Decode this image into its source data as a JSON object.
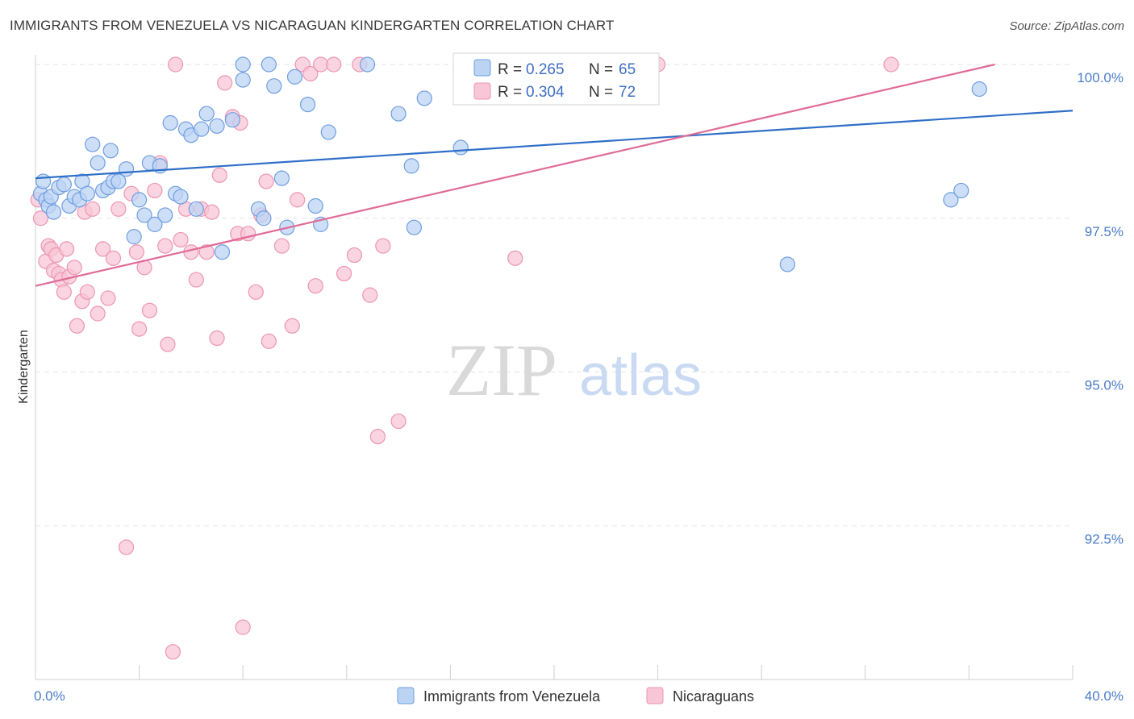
{
  "title": "IMMIGRANTS FROM VENEZUELA VS NICARAGUAN KINDERGARTEN CORRELATION CHART",
  "source": "Source: ZipAtlas.com",
  "watermark": {
    "zip": "ZIP",
    "atlas": "atlas"
  },
  "colors": {
    "blue_fill": "#bcd4f4",
    "blue_stroke": "#6f9ee0",
    "blue_line": "#2f6fc8",
    "pink_fill": "#f8c6d6",
    "pink_stroke": "#ec96b2",
    "pink_line": "#e06b98",
    "grid": "#e3e3e3",
    "tick_text": "#4a7cc9"
  },
  "legend": {
    "rows": [
      {
        "r_label": "R = ",
        "r_value": "0.265",
        "n_label": "N = ",
        "n_value": "65"
      },
      {
        "r_label": "R = ",
        "r_value": "0.304",
        "n_label": "N = ",
        "n_value": "72"
      }
    ]
  },
  "bottom_legend": [
    "Immigrants from Venezuela",
    "Nicaraguans"
  ],
  "chart_data": {
    "type": "scatter",
    "title": "IMMIGRANTS FROM VENEZUELA VS NICARAGUAN KINDERGARTEN CORRELATION CHART",
    "xlabel": "",
    "ylabel": "Kindergarten",
    "xlim": [
      0,
      40
    ],
    "ylim": [
      90.0,
      100.3
    ],
    "x_tick_labels": [
      "0.0%",
      "40.0%"
    ],
    "y_ticks": [
      92.5,
      95.0,
      97.5,
      100.0
    ],
    "y_tick_labels": [
      "92.5%",
      "95.0%",
      "97.5%",
      "100.0%"
    ],
    "grid": true,
    "legend_position": "top-center",
    "series": [
      {
        "name": "Immigrants from Venezuela",
        "color": "#6f9ee0",
        "trend": {
          "x": [
            0,
            40
          ],
          "y": [
            98.15,
            99.25
          ]
        },
        "points": [
          [
            0.2,
            97.9
          ],
          [
            0.3,
            98.1
          ],
          [
            0.4,
            97.8
          ],
          [
            0.5,
            97.7
          ],
          [
            0.6,
            97.85
          ],
          [
            0.7,
            97.6
          ],
          [
            0.9,
            98.0
          ],
          [
            1.1,
            98.05
          ],
          [
            1.3,
            97.7
          ],
          [
            1.5,
            97.85
          ],
          [
            1.7,
            97.8
          ],
          [
            1.8,
            98.1
          ],
          [
            2.0,
            97.9
          ],
          [
            2.2,
            98.7
          ],
          [
            2.4,
            98.4
          ],
          [
            2.6,
            97.95
          ],
          [
            2.8,
            98.0
          ],
          [
            2.9,
            98.6
          ],
          [
            3.0,
            98.1
          ],
          [
            3.2,
            98.1
          ],
          [
            3.5,
            98.3
          ],
          [
            3.8,
            97.2
          ],
          [
            4.0,
            97.8
          ],
          [
            4.2,
            97.55
          ],
          [
            4.4,
            98.4
          ],
          [
            4.6,
            97.4
          ],
          [
            4.8,
            98.35
          ],
          [
            5.0,
            97.55
          ],
          [
            5.2,
            99.05
          ],
          [
            5.4,
            97.9
          ],
          [
            5.6,
            97.85
          ],
          [
            5.8,
            98.95
          ],
          [
            6.0,
            98.85
          ],
          [
            6.2,
            97.65
          ],
          [
            6.4,
            98.95
          ],
          [
            6.6,
            99.2
          ],
          [
            7.0,
            99.0
          ],
          [
            7.2,
            96.95
          ],
          [
            7.6,
            99.1
          ],
          [
            8.0,
            100.0
          ],
          [
            8.0,
            99.75
          ],
          [
            8.6,
            97.65
          ],
          [
            8.8,
            97.5
          ],
          [
            9.0,
            100.0
          ],
          [
            9.2,
            99.65
          ],
          [
            9.5,
            98.15
          ],
          [
            9.7,
            97.35
          ],
          [
            10.0,
            99.8
          ],
          [
            10.5,
            99.35
          ],
          [
            10.8,
            97.7
          ],
          [
            11.0,
            97.4
          ],
          [
            11.3,
            98.9
          ],
          [
            12.8,
            100.0
          ],
          [
            14.0,
            99.2
          ],
          [
            14.5,
            98.35
          ],
          [
            14.6,
            97.35
          ],
          [
            15.0,
            99.45
          ],
          [
            16.4,
            98.65
          ],
          [
            17.6,
            100.0
          ],
          [
            18.6,
            100.0
          ],
          [
            19.2,
            100.0
          ],
          [
            29.0,
            96.75
          ],
          [
            35.3,
            97.8
          ],
          [
            35.7,
            97.95
          ],
          [
            36.4,
            99.6
          ]
        ]
      },
      {
        "name": "Nicaraguans",
        "color": "#ec96b2",
        "trend": {
          "x": [
            0,
            37
          ],
          "y": [
            96.4,
            100.0
          ]
        },
        "points": [
          [
            0.1,
            97.8
          ],
          [
            0.2,
            97.5
          ],
          [
            0.4,
            96.8
          ],
          [
            0.5,
            97.05
          ],
          [
            0.6,
            97.0
          ],
          [
            0.7,
            96.65
          ],
          [
            0.8,
            96.9
          ],
          [
            0.9,
            96.6
          ],
          [
            1.0,
            96.5
          ],
          [
            1.1,
            96.3
          ],
          [
            1.3,
            96.55
          ],
          [
            1.5,
            96.7
          ],
          [
            1.6,
            95.75
          ],
          [
            1.8,
            96.15
          ],
          [
            1.9,
            97.6
          ],
          [
            2.0,
            96.3
          ],
          [
            2.2,
            97.65
          ],
          [
            2.4,
            95.95
          ],
          [
            2.6,
            97.0
          ],
          [
            2.8,
            96.2
          ],
          [
            3.0,
            96.85
          ],
          [
            3.2,
            97.65
          ],
          [
            3.5,
            92.15
          ],
          [
            3.7,
            97.9
          ],
          [
            3.9,
            96.95
          ],
          [
            4.0,
            95.7
          ],
          [
            4.2,
            96.7
          ],
          [
            4.4,
            96.0
          ],
          [
            4.6,
            97.95
          ],
          [
            4.8,
            98.4
          ],
          [
            5.0,
            97.05
          ],
          [
            5.1,
            95.45
          ],
          [
            5.4,
            100.0
          ],
          [
            5.6,
            97.15
          ],
          [
            5.8,
            97.65
          ],
          [
            6.0,
            96.95
          ],
          [
            6.2,
            96.5
          ],
          [
            6.4,
            97.65
          ],
          [
            6.6,
            96.95
          ],
          [
            6.8,
            97.6
          ],
          [
            7.0,
            95.55
          ],
          [
            7.1,
            98.2
          ],
          [
            7.3,
            99.7
          ],
          [
            7.6,
            99.15
          ],
          [
            7.8,
            97.25
          ],
          [
            7.9,
            99.05
          ],
          [
            8.0,
            90.85
          ],
          [
            8.2,
            97.25
          ],
          [
            8.5,
            96.3
          ],
          [
            8.7,
            97.55
          ],
          [
            8.9,
            98.1
          ],
          [
            9.0,
            95.5
          ],
          [
            9.5,
            97.05
          ],
          [
            9.9,
            95.75
          ],
          [
            10.1,
            97.8
          ],
          [
            10.3,
            100.0
          ],
          [
            10.6,
            99.85
          ],
          [
            10.8,
            96.4
          ],
          [
            11.0,
            100.0
          ],
          [
            11.5,
            100.0
          ],
          [
            11.9,
            96.6
          ],
          [
            12.3,
            96.9
          ],
          [
            12.5,
            100.0
          ],
          [
            12.9,
            96.25
          ],
          [
            13.2,
            93.95
          ],
          [
            13.4,
            97.05
          ],
          [
            14.0,
            94.2
          ],
          [
            18.5,
            96.85
          ],
          [
            24.0,
            100.0
          ],
          [
            33.0,
            100.0
          ],
          [
            5.3,
            90.45
          ],
          [
            1.2,
            97.0
          ]
        ]
      }
    ]
  }
}
